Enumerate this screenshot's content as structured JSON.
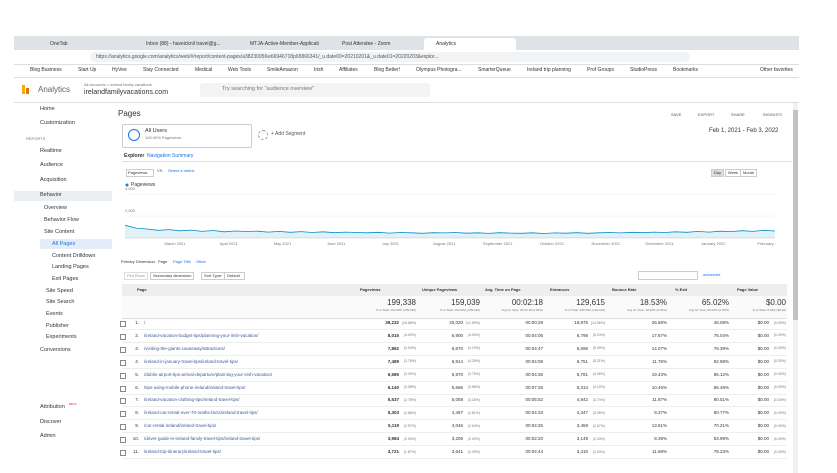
{
  "browser": {
    "tabs": [
      "OneTab",
      "Inbox (88) - haveicknil travel@g...",
      "MTJA-Active-Member-Applicati",
      "Post Attendee - Zoom",
      "Analytics"
    ],
    "url": "https://analytics.google.com/analytics/web/#/report/content-pages/a38230056w66946718p65866341/_u.date00=20210201&_u.date01=20220203&explor...",
    "bookmarks": [
      "Blog Business",
      "Start Up",
      "HyVee",
      "Stay Connected",
      "Medical",
      "Web Tools",
      "SmileAmazon",
      "Irish",
      "Affiliates",
      "Blog Better!",
      "Olympus Photogra...",
      "SmarterQueue",
      "Ireland trip planning",
      "Prof Groups",
      "StudioPress",
      "Bookmarks"
    ],
    "other_bookmarks": "Other favorites"
  },
  "header": {
    "product": "Analytics",
    "breadcrumb": "All accounts > ireland family vacations",
    "property": "irelandfamilyvacations.com",
    "search": "Try searching for \"audience overview\""
  },
  "sidebar": {
    "top": [
      "Home",
      "Customization"
    ],
    "section_label": "REPORTS",
    "reports": [
      "Realtime",
      "Audience",
      "Acquisition",
      "Behavior"
    ],
    "behavior": [
      "Overview",
      "Behavior Flow",
      "Site Content"
    ],
    "site_content": [
      "All Pages",
      "Content Drilldown",
      "Landing Pages",
      "Exit Pages"
    ],
    "behavior_more": [
      "Site Speed",
      "Site Search",
      "Events",
      "Publisher",
      "Experiments"
    ],
    "conversions": "Conversions",
    "bottom": [
      "Attribution",
      "Discover",
      "Admin"
    ],
    "beta": "BETA"
  },
  "report": {
    "title": "Pages",
    "actions": [
      "SAVE",
      "EXPORT",
      "SHARE",
      "INSIGHTS"
    ],
    "segment": "All Users",
    "segment_sub": "100.00% Pageviews",
    "add_segment": "+ Add Segment",
    "date_range": "Feb 1, 2021 - Feb 3, 2022",
    "tabs": [
      "Explorer",
      "Navigation Summary"
    ],
    "metric": "Pageviews",
    "vs": "VS.",
    "select_metric": "Select a metric",
    "granularity": [
      "Day",
      "Week",
      "Month"
    ],
    "primary_dimension": "Primary Dimension:",
    "dimensions": [
      "Page",
      "Page Title",
      "Other"
    ],
    "plot_rows": "Plot Rows",
    "secondary_dimension": "Secondary dimension",
    "sort_type": "Sort Type:",
    "sort_default": "Default",
    "advanced": "advanced"
  },
  "chart_data": {
    "type": "line",
    "series": [
      {
        "name": "Pageviews",
        "color": "#058dc7",
        "values": [
          1150,
          900,
          820,
          700,
          760,
          650,
          720,
          600,
          680,
          560,
          640,
          590,
          620,
          540,
          600,
          520,
          580,
          500,
          560,
          480,
          540,
          500,
          470,
          520,
          450,
          500,
          470,
          430,
          480,
          460,
          500,
          440,
          470,
          420,
          480,
          450,
          430,
          470,
          410,
          460,
          440,
          480,
          430,
          470,
          500,
          460,
          520,
          480,
          540,
          500,
          560,
          520,
          600,
          540,
          620,
          580,
          660,
          600,
          700,
          640
        ]
      }
    ],
    "x_labels": [
      "March 2021",
      "April 2021",
      "May 2021",
      "June 2021",
      "July 2021",
      "August 2021",
      "September 2021",
      "October 2021",
      "November 2021",
      "December 2021",
      "January 2022",
      "February..."
    ],
    "ylim": [
      0,
      4000
    ],
    "yticks": [
      {
        "value": 2000,
        "label": "2,000"
      },
      {
        "value": 4000,
        "label": "4,000"
      }
    ]
  },
  "table": {
    "columns": [
      "Page",
      "Pageviews",
      "Unique Pageviews",
      "Avg. Time on Page",
      "Entrances",
      "Bounce Rate",
      "% Exit",
      "Page Value"
    ],
    "totals": [
      {
        "value": "199,338",
        "note": "% of Total: 100.00% (199,338)"
      },
      {
        "value": "159,039",
        "note": "% of Total: 100.00% (159,039)"
      },
      {
        "value": "00:02:18",
        "note": "Avg for View: 00:02:18 (0.00%)"
      },
      {
        "value": "129,615",
        "note": "% of Total: 100.00% (129,615)"
      },
      {
        "value": "18.53%",
        "note": "Avg for View: 18.53% (0.00%)"
      },
      {
        "value": "65.02%",
        "note": "Avg for View: 65.02% (0.00%)"
      },
      {
        "value": "$0.00",
        "note": "% of Total: 0.00% ($0.00)"
      }
    ],
    "rows": [
      [
        "1.",
        "/",
        "39,232",
        "(19.68%)",
        "20,020",
        "(12.59%)",
        "00:00:29",
        "18,876",
        "(14.56%)",
        "26.66%",
        "45.08%",
        "$0.00",
        "(0.00%)"
      ],
      [
        "2.",
        "/ireland-vacation-budget-tips/planning-your-irish-vacation/",
        "8,015",
        "(4.02%)",
        "6,900",
        "(4.34%)",
        "00:04:05",
        "6,798",
        "(5.24%)",
        "17.67%",
        "76.04%",
        "$0.00",
        "(0.00%)"
      ],
      [
        "3.",
        "/visiting-the-giants-causeway/attractions/",
        "7,862",
        "(3.94%)",
        "6,670",
        "(4.19%)",
        "00:04:47",
        "6,596",
        "(5.09%)",
        "14.07%",
        "78.39%",
        "$0.00",
        "(0.00%)"
      ],
      [
        "4.",
        "/ireland-in-january-travel-tips/ireland-travel-tips/",
        "7,489",
        "(3.76%)",
        "6,814",
        "(4.28%)",
        "00:04:08",
        "6,751",
        "(5.21%)",
        "11.76%",
        "82.88%",
        "$0.00",
        "(0.00%)"
      ],
      [
        "5.",
        "/dublin-airport-tips-arrival-departure/planning-your-irish-vacation/",
        "6,585",
        "(3.30%)",
        "5,970",
        "(3.75%)",
        "00:04:36",
        "5,781",
        "(4.46%)",
        "19.43%",
        "86.12%",
        "$0.00",
        "(0.00%)"
      ],
      [
        "6.",
        "/tips-using-mobile-phone-ireland/ireland-travel-tips/",
        "6,140",
        "(3.08%)",
        "5,666",
        "(3.56%)",
        "00:07:26",
        "5,314",
        "(4.10%)",
        "10.45%",
        "86.48%",
        "$0.00",
        "(0.00%)"
      ],
      [
        "7.",
        "/ireland-vacation-clothing-tips/ireland-travel-tips/",
        "5,537",
        "(2.78%)",
        "5,058",
        "(3.18%)",
        "00:05:52",
        "4,842",
        "(3.74%)",
        "11.87%",
        "80.51%",
        "$0.00",
        "(0.00%)"
      ],
      [
        "8.",
        "/ireland-car-rental-over-70-maths-facts/ireland-travel-tips/",
        "5,303",
        "(2.66%)",
        "4,467",
        "(2.81%)",
        "00:04:33",
        "4,347",
        "(3.35%)",
        "9.37%",
        "80.77%",
        "$0.00",
        "(0.00%)"
      ],
      [
        "9.",
        "/car-rental-ireland/ireland-travel-tips/",
        "5,119",
        "(2.57%)",
        "4,046",
        "(2.54%)",
        "00:04:25",
        "3,459",
        "(2.67%)",
        "13.61%",
        "70.21%",
        "$0.00",
        "(0.00%)"
      ],
      [
        "10.",
        "/driver-guide-in-ireland-family-travel-tips/ireland-travel-tips/",
        "3,984",
        "(2.00%)",
        "3,206",
        "(2.02%)",
        "00:02:20",
        "3,149",
        "(2.43%)",
        "8.39%",
        "53.99%",
        "$0.00",
        "(0.00%)"
      ],
      [
        "11.",
        "/ireland-trip-itinerary/ireland-travel-tips/",
        "3,721",
        "(1.87%)",
        "3,641",
        "(2.29%)",
        "00:04:44",
        "3,410",
        "(2.63%)",
        "11.68%",
        "78.23%",
        "$0.00",
        "(0.00%)"
      ]
    ]
  }
}
